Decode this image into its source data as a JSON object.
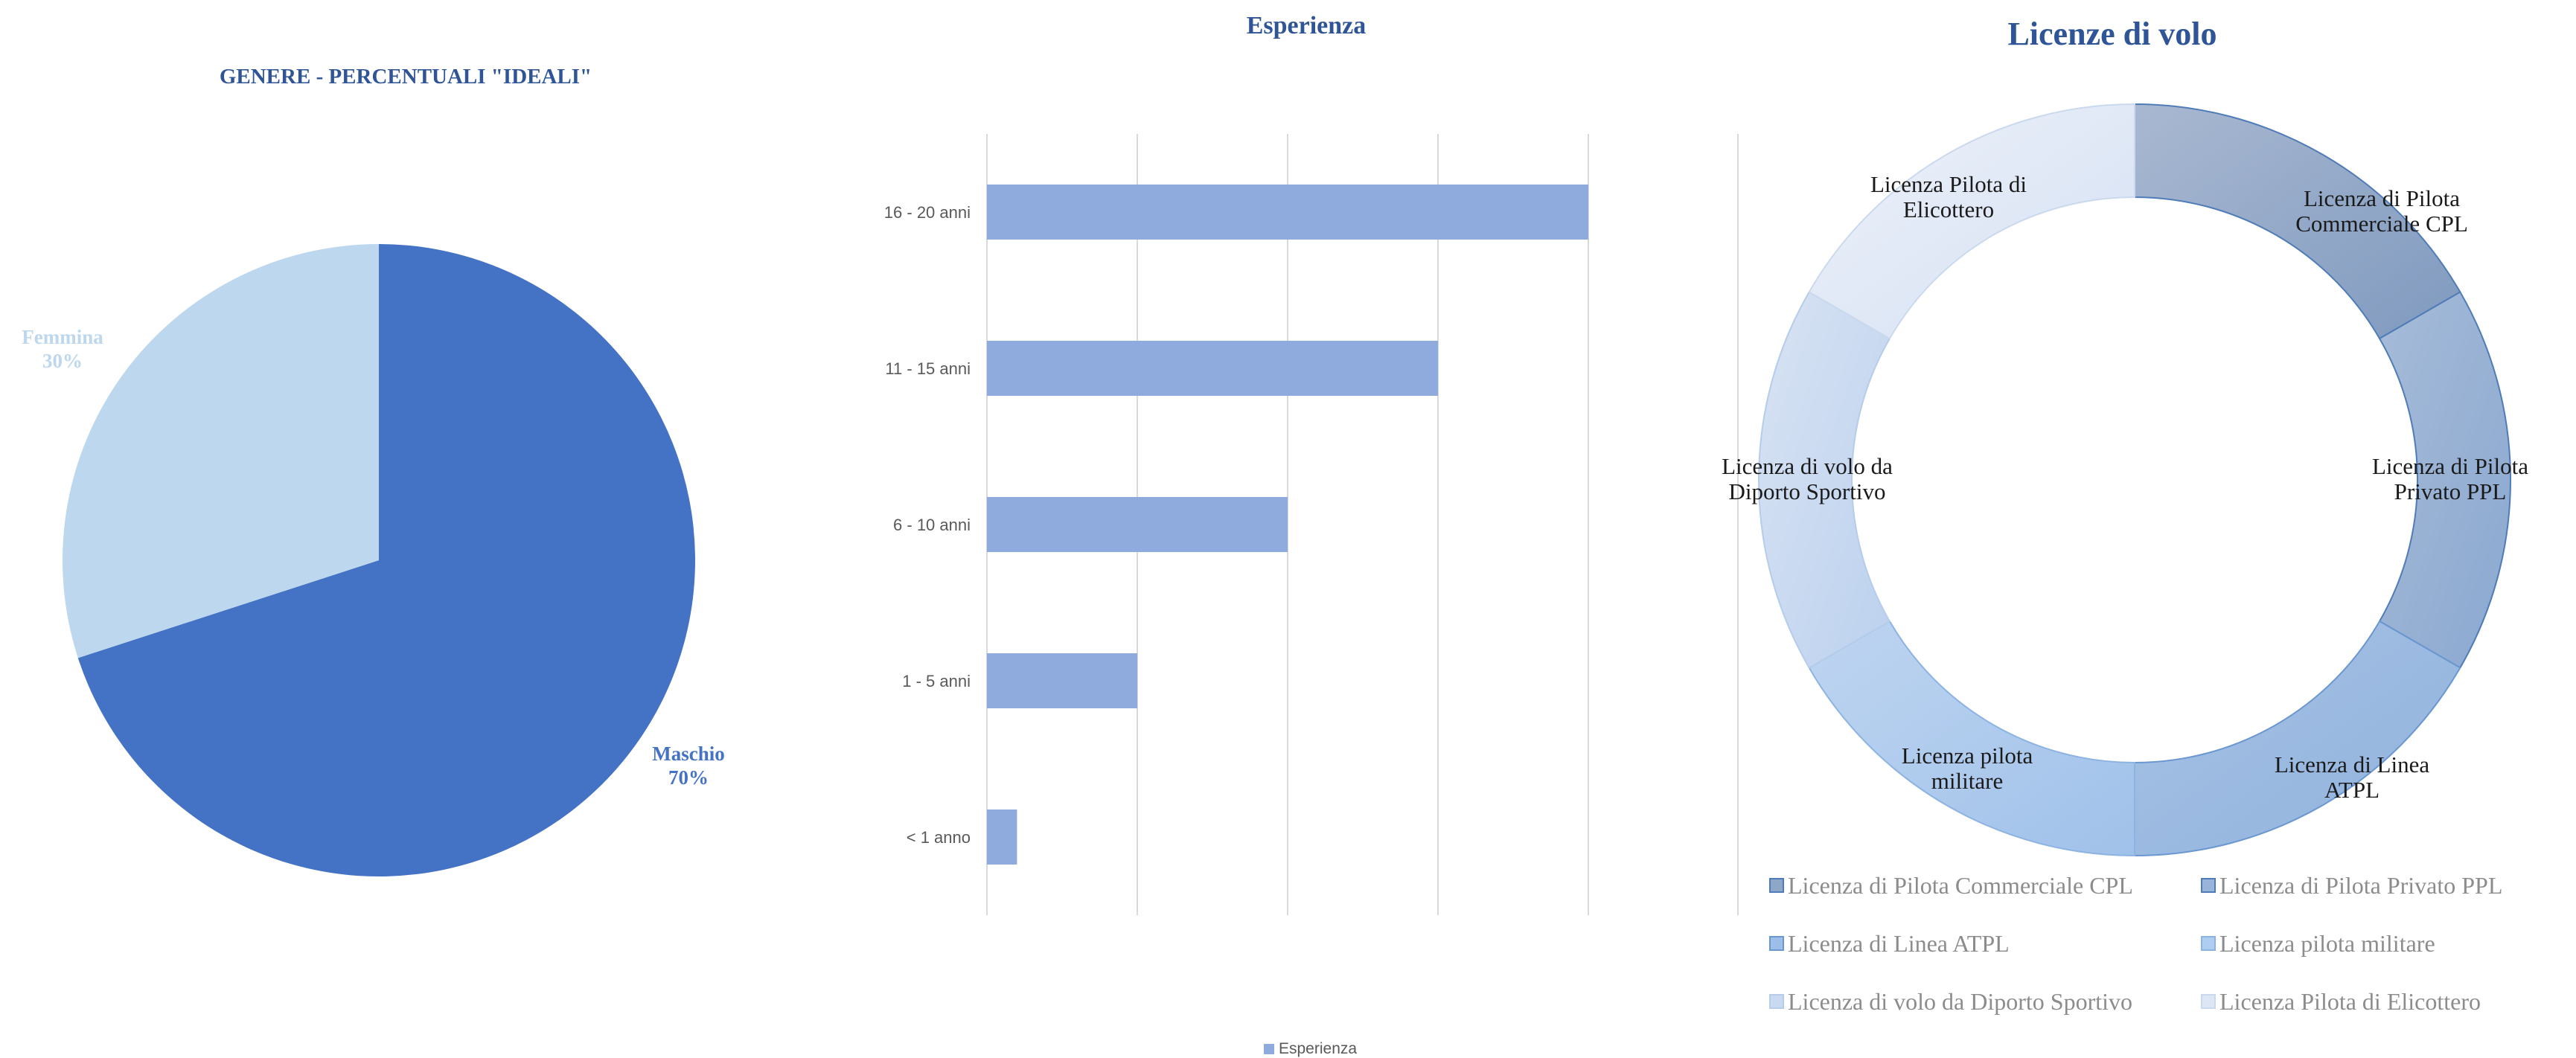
{
  "chart_data": [
    {
      "type": "pie",
      "title": "GENERE - PERCENTUALI \"IDEALI\"",
      "slices": [
        {
          "label": "Maschio",
          "value": 70,
          "value_label": "70%",
          "color": "#4472C4"
        },
        {
          "label": "Femmina",
          "value": 30,
          "value_label": "30%",
          "color": "#BDD7EE"
        }
      ]
    },
    {
      "type": "bar",
      "orientation": "horizontal",
      "title": "Esperienza",
      "categories": [
        "16 - 20 anni",
        "11 - 15 anni",
        "6 - 10 anni",
        "1 - 5 anni",
        "< 1 anno"
      ],
      "series": [
        {
          "name": "Esperienza",
          "values": [
            20,
            15,
            10,
            5,
            1
          ],
          "color": "#8FAADC"
        }
      ],
      "xlim": [
        0,
        20
      ],
      "grid": true,
      "legend": "bottom"
    },
    {
      "type": "pie",
      "subtype": "doughnut",
      "title": "Licenze di volo",
      "slices": [
        {
          "label": "Licenza di Pilota Commerciale CPL",
          "label_lines": [
            "Licenza di Pilota",
            "Commerciale CPL"
          ],
          "value": 1,
          "color": "#8EA6C8"
        },
        {
          "label": "Licenza di Pilota Privato PPL",
          "label_lines": [
            "Licenza di Pilota",
            "Privato PPL"
          ],
          "value": 1,
          "color": "#98B4DA"
        },
        {
          "label": "Licenza di Linea ATPL",
          "label_lines": [
            "Licenza di Linea",
            "ATPL"
          ],
          "value": 1,
          "color": "#9DBEE6"
        },
        {
          "label": "Licenza pilota militare",
          "label_lines": [
            "Licenza pilota",
            "militare"
          ],
          "value": 1,
          "color": "#AECDF0"
        },
        {
          "label": "Licenza di volo da Diporto Sportivo",
          "label_lines": [
            "Licenza di volo da",
            "Diporto Sportivo"
          ],
          "value": 1,
          "color": "#C9DAF0"
        },
        {
          "label": "Licenza Pilota di Elicottero",
          "label_lines": [
            "Licenza Pilota di",
            "Elicottero"
          ],
          "value": 1,
          "color": "#DDE6F5"
        }
      ],
      "legend": "bottom"
    }
  ]
}
